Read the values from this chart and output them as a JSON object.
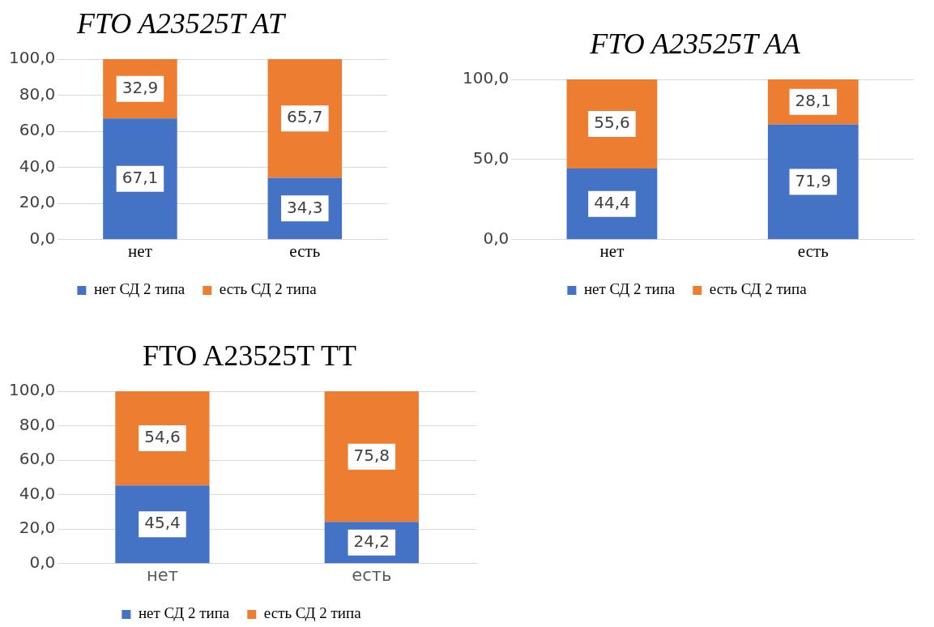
{
  "chart_data": [
    {
      "type": "bar",
      "title": "FTO A23525T AT",
      "categories": [
        "нет",
        "есть"
      ],
      "stacked": true,
      "series": [
        {
          "name": "нет СД 2 типа",
          "color": "#4472c4",
          "values": [
            67.1,
            34.3
          ],
          "value_labels": [
            "67,1",
            "34,3"
          ]
        },
        {
          "name": "есть СД 2 типа",
          "color": "#ed7d31",
          "values": [
            32.9,
            65.7
          ],
          "value_labels": [
            "32,9",
            "65,7"
          ]
        }
      ],
      "ylim": [
        0,
        100
      ],
      "yticks": [
        {
          "value": 0,
          "label": "0,0"
        },
        {
          "value": 20,
          "label": "20,0"
        },
        {
          "value": 40,
          "label": "40,0"
        },
        {
          "value": 60,
          "label": "60,0"
        },
        {
          "value": 80,
          "label": "80,0"
        },
        {
          "value": 100,
          "label": "100,0"
        }
      ],
      "grid": "y",
      "legend": "bottom"
    },
    {
      "type": "bar",
      "title": "FTO A23525T AA",
      "categories": [
        "нет",
        "есть"
      ],
      "stacked": true,
      "series": [
        {
          "name": "нет СД 2 типа",
          "color": "#4472c4",
          "values": [
            44.4,
            71.9
          ],
          "value_labels": [
            "44,4",
            "71,9"
          ]
        },
        {
          "name": "есть СД 2 типа",
          "color": "#ed7d31",
          "values": [
            55.6,
            28.1
          ],
          "value_labels": [
            "55,6",
            "28,1"
          ]
        }
      ],
      "ylim": [
        0,
        100
      ],
      "yticks": [
        {
          "value": 0,
          "label": "0,0"
        },
        {
          "value": 50,
          "label": "50,0"
        },
        {
          "value": 100,
          "label": "100,0"
        }
      ],
      "grid": "y",
      "legend": "bottom"
    },
    {
      "type": "bar",
      "title": "FTO A23525T TT",
      "categories": [
        "нет",
        "есть"
      ],
      "stacked": true,
      "series": [
        {
          "name": "нет СД 2 типа",
          "color": "#4472c4",
          "values": [
            45.4,
            24.2
          ],
          "value_labels": [
            "45,4",
            "24,2"
          ]
        },
        {
          "name": "есть СД 2 типа",
          "color": "#ed7d31",
          "values": [
            54.6,
            75.8
          ],
          "value_labels": [
            "54,6",
            "75,8"
          ]
        }
      ],
      "ylim": [
        0,
        100
      ],
      "yticks": [
        {
          "value": 0,
          "label": "0,0"
        },
        {
          "value": 20,
          "label": "20,0"
        },
        {
          "value": 40,
          "label": "40,0"
        },
        {
          "value": 60,
          "label": "60,0"
        },
        {
          "value": 80,
          "label": "80,0"
        },
        {
          "value": 100,
          "label": "100,0"
        }
      ],
      "grid": "y",
      "legend": "bottom"
    }
  ]
}
